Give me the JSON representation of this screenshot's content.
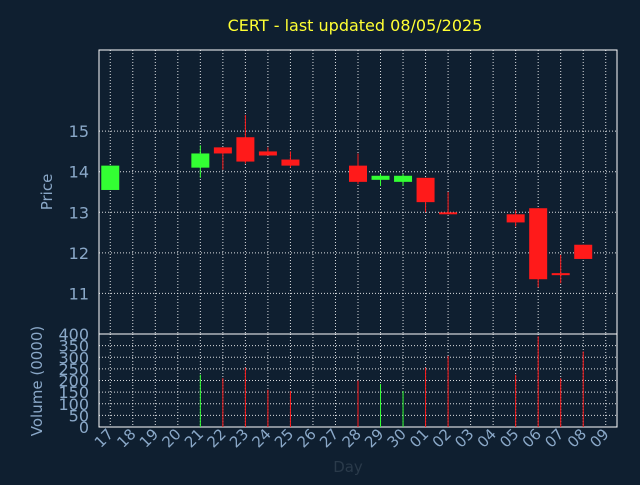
{
  "chart_data": {
    "type": "candlestick",
    "title": "CERT - last updated 08/05/2025",
    "xlabel": "Day",
    "price_panel": {
      "ylabel": "Price",
      "ylim": [
        10,
        17
      ],
      "yticks": [
        11,
        12,
        13,
        14,
        15
      ]
    },
    "volume_panel": {
      "ylabel": "Volume (0000)",
      "ylim": [
        0,
        400
      ],
      "yticks": [
        0,
        50,
        100,
        150,
        200,
        250,
        300,
        350,
        400
      ]
    },
    "grid": true,
    "days": [
      "17",
      "18",
      "19",
      "20",
      "21",
      "22",
      "23",
      "24",
      "25",
      "26",
      "27",
      "28",
      "29",
      "30",
      "01",
      "02",
      "03",
      "04",
      "05",
      "06",
      "07",
      "08",
      "09"
    ],
    "candles": [
      {
        "day": "17",
        "open": 13.55,
        "high": 14.15,
        "low": 13.55,
        "close": 14.15,
        "volume": null
      },
      {
        "day": "21",
        "open": 14.1,
        "high": 14.65,
        "low": 13.85,
        "close": 14.45,
        "volume": 225
      },
      {
        "day": "22",
        "open": 14.6,
        "high": 14.6,
        "low": 14.05,
        "close": 14.45,
        "volume": 210
      },
      {
        "day": "23",
        "open": 14.85,
        "high": 15.4,
        "low": 14.2,
        "close": 14.25,
        "volume": 255
      },
      {
        "day": "24",
        "open": 14.5,
        "high": 14.6,
        "low": 14.4,
        "close": 14.4,
        "volume": 160
      },
      {
        "day": "25",
        "open": 14.3,
        "high": 14.5,
        "low": 14.1,
        "close": 14.15,
        "volume": 155
      },
      {
        "day": "28",
        "open": 14.15,
        "high": 14.45,
        "low": 13.7,
        "close": 13.75,
        "volume": 200
      },
      {
        "day": "29",
        "open": 13.8,
        "high": 13.95,
        "low": 13.65,
        "close": 13.9,
        "volume": 185
      },
      {
        "day": "30",
        "open": 13.75,
        "high": 13.95,
        "low": 13.65,
        "close": 13.9,
        "volume": 155
      },
      {
        "day": "01",
        "open": 13.85,
        "high": 13.85,
        "low": 13.0,
        "close": 13.25,
        "volume": 255
      },
      {
        "day": "02",
        "open": 13.0,
        "high": 13.5,
        "low": 12.95,
        "close": 12.97,
        "volume": 305
      },
      {
        "day": "05",
        "open": 12.95,
        "high": 13.05,
        "low": 12.65,
        "close": 12.75,
        "volume": 225
      },
      {
        "day": "06",
        "open": 13.1,
        "high": 13.1,
        "low": 11.15,
        "close": 11.35,
        "volume": 390
      },
      {
        "day": "07",
        "open": 11.5,
        "high": 11.95,
        "low": 11.25,
        "close": 11.45,
        "volume": 210
      },
      {
        "day": "08",
        "open": 12.2,
        "high": 12.2,
        "low": 11.85,
        "close": 11.85,
        "volume": 325
      }
    ],
    "colors": {
      "background": "#0f1f30",
      "grid": "#ffffff",
      "axis_text": "#8aa8c8",
      "title": "#ffff33",
      "up": "#33ff33",
      "down": "#ff1a1a"
    }
  }
}
